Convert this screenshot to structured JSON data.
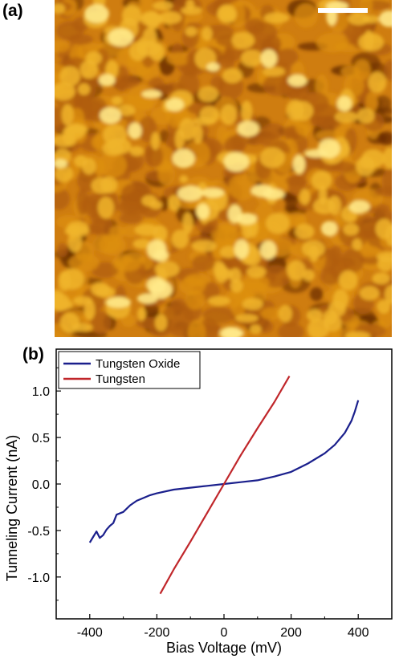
{
  "panels": {
    "a_label": "(a)",
    "b_label": "(b)"
  },
  "afm_image": {
    "palette": [
      "#6b2f05",
      "#b05e0c",
      "#dc8f12",
      "#f0b52a",
      "#ffe98a"
    ]
  },
  "chart_data": {
    "type": "line",
    "xlabel": "Bias Voltage (mV)",
    "ylabel": "Tunneling Current (nA)",
    "xlim": [
      -500,
      500
    ],
    "ylim": [
      -1.45,
      1.45
    ],
    "xticks": [
      -400,
      -200,
      0,
      200,
      400
    ],
    "xtick_labels": [
      "-400",
      "-200",
      "0",
      "200",
      "400"
    ],
    "yticks": [
      1.0,
      0.5,
      0.0,
      -0.5,
      -1.0
    ],
    "ytick_labels": [
      "1.0",
      "0.5",
      "0.0",
      "-0.5",
      "-1.0"
    ],
    "legend_position": "top-left",
    "grid": false,
    "series": [
      {
        "name": "Tungsten Oxide",
        "color": "#1a1f8c",
        "x": [
          -400,
          -390,
          -380,
          -370,
          -360,
          -350,
          -340,
          -330,
          -320,
          -300,
          -280,
          -260,
          -240,
          -220,
          -200,
          -150,
          -100,
          -50,
          0,
          50,
          100,
          150,
          200,
          250,
          300,
          330,
          360,
          380,
          390,
          400
        ],
        "y": [
          -0.63,
          -0.57,
          -0.51,
          -0.58,
          -0.55,
          -0.49,
          -0.45,
          -0.42,
          -0.33,
          -0.3,
          -0.23,
          -0.18,
          -0.15,
          -0.12,
          -0.1,
          -0.06,
          -0.04,
          -0.02,
          0.0,
          0.02,
          0.04,
          0.08,
          0.13,
          0.22,
          0.33,
          0.42,
          0.55,
          0.68,
          0.78,
          0.9
        ]
      },
      {
        "name": "Tungsten",
        "color": "#c0262a",
        "x": [
          -190,
          -150,
          -100,
          -50,
          0,
          50,
          100,
          150,
          195
        ],
        "y": [
          -1.18,
          -0.92,
          -0.62,
          -0.31,
          0.0,
          0.31,
          0.6,
          0.88,
          1.16
        ]
      }
    ]
  }
}
